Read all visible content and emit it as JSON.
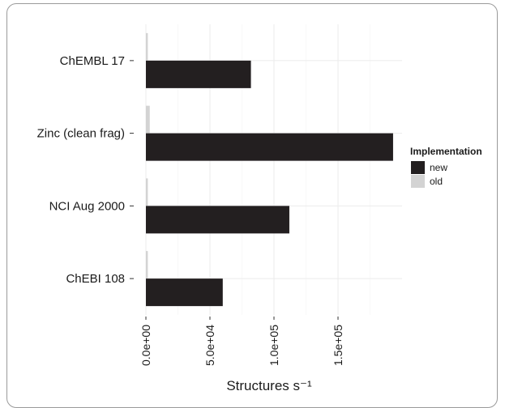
{
  "chart_data": {
    "type": "bar",
    "orientation": "horizontal",
    "categories": [
      "ChEMBL 17",
      "Zinc (clean frag)",
      "NCI Aug 2000",
      "ChEBI 108"
    ],
    "series": [
      {
        "name": "new",
        "color": "#231f20",
        "values": [
          82000,
          193000,
          112000,
          60000
        ]
      },
      {
        "name": "old",
        "color": "#d3d3d3",
        "values": [
          1500,
          3000,
          1500,
          1500
        ]
      }
    ],
    "xlabel": "Structures s⁻¹",
    "x_ticks": [
      0,
      50000,
      100000,
      150000
    ],
    "x_tick_labels": [
      "0.0e+00",
      "5.0e+04",
      "1.0e+05",
      "1.5e+05"
    ],
    "xlim": [
      0,
      200000
    ],
    "grid": true,
    "legend": {
      "title": "Implementation",
      "position": "right",
      "entries": [
        {
          "label": "new",
          "color": "#231f20"
        },
        {
          "label": "old",
          "color": "#d3d3d3"
        }
      ]
    }
  }
}
